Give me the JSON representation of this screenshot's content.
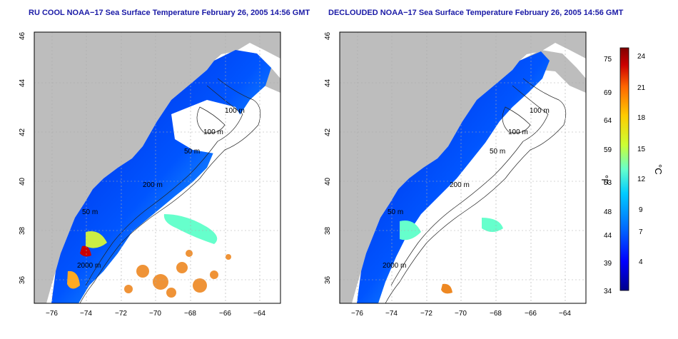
{
  "maps": [
    {
      "title": "RU COOL NOAA−17 Sea Surface Temperature February 26, 2005 14:56 GMT"
    },
    {
      "title": "DECLOUDED NOAA−17 Sea Surface Temperature February 26, 2005 14:56 GMT"
    }
  ],
  "axes": {
    "x_ticks": [
      "−76",
      "−74",
      "−72",
      "−70",
      "−68",
      "−66",
      "−64"
    ],
    "y_ticks": [
      "46",
      "44",
      "42",
      "40",
      "38",
      "36"
    ]
  },
  "contours": {
    "left": [
      "100 m",
      "100 m",
      "50 m",
      "200 m",
      "50 m",
      "2000 m"
    ],
    "right": [
      "100 m",
      "100 m",
      "50 m",
      "200 m",
      "50 m",
      "2000 m"
    ]
  },
  "colorbar": {
    "fahrenheit_label": "°F",
    "celsius_label": "°C",
    "fahrenheit_ticks": [
      "75",
      "69",
      "64",
      "59",
      "53",
      "48",
      "44",
      "39",
      "34"
    ],
    "celsius_ticks": [
      "24",
      "21",
      "18",
      "15",
      "12",
      "9",
      "7",
      "4"
    ]
  },
  "colors": {
    "land": "#bdbdbd",
    "title": "#1a1aa6",
    "scale": [
      "#00008b",
      "#0000ff",
      "#0066ff",
      "#00ccff",
      "#66ffcc",
      "#ccff33",
      "#ffcc00",
      "#ff6600",
      "#cc0000",
      "#800000"
    ]
  }
}
